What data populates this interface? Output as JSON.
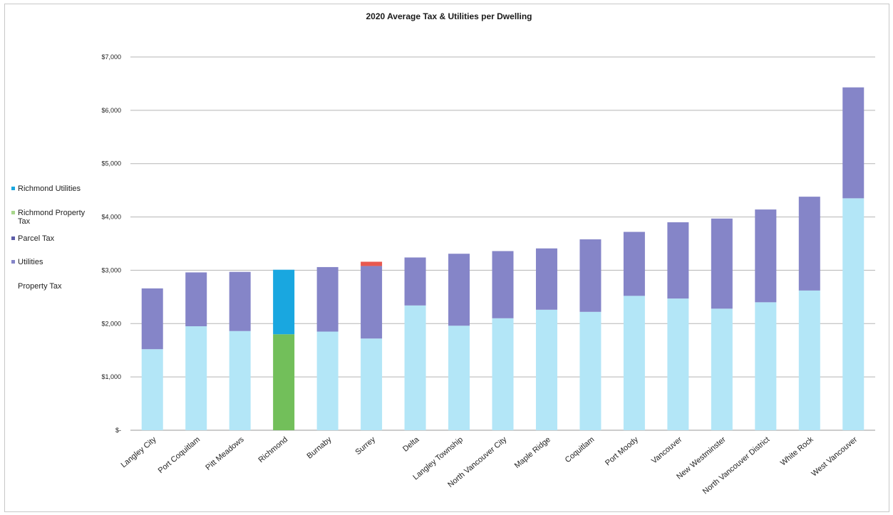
{
  "chart_data": {
    "type": "bar",
    "stacked": true,
    "title": "2020 Average Tax & Utilities per Dwelling",
    "xlabel": "",
    "ylabel": "",
    "ylim": [
      0,
      7000
    ],
    "yticks": [
      0,
      1000,
      2000,
      3000,
      4000,
      5000,
      6000,
      7000
    ],
    "ytick_labels": [
      "$-",
      "$1,000",
      "$2,000",
      "$3,000",
      "$4,000",
      "$5,000",
      "$6,000",
      "$7,000"
    ],
    "grid": true,
    "legend_position": "left",
    "categories": [
      "Langley City",
      "Port Coquitlam",
      "Pitt Meadows",
      "Richmond",
      "Burnaby",
      "Surrey",
      "Delta",
      "Langley Township",
      "North Vancouver City",
      "Maple Ridge",
      "Coquitlam",
      "Port Moody",
      "Vancouver",
      "New Westminster",
      "North Vancouver District",
      "White Rock",
      "West Vancouver"
    ],
    "series": [
      {
        "name": "Property Tax",
        "color": "#b3e6f7",
        "values": [
          1520,
          1950,
          1860,
          0,
          1850,
          1720,
          2340,
          1960,
          2100,
          2260,
          2220,
          2520,
          2470,
          2280,
          2400,
          2620,
          4350
        ]
      },
      {
        "name": "Utilities",
        "color": "#8585c8",
        "values": [
          1140,
          1010,
          1110,
          0,
          1210,
          1360,
          900,
          1350,
          1260,
          1150,
          1360,
          1200,
          1430,
          1690,
          1740,
          1760,
          2080
        ]
      },
      {
        "name": "Parcel Tax",
        "color": "#5c5ca8",
        "values": [
          0,
          0,
          0,
          0,
          0,
          0,
          0,
          0,
          0,
          0,
          0,
          0,
          0,
          0,
          0,
          0,
          0
        ]
      },
      {
        "name": "Richmond Property Tax",
        "color": "#72bf5a",
        "values": [
          0,
          0,
          0,
          1800,
          0,
          0,
          0,
          0,
          0,
          0,
          0,
          0,
          0,
          0,
          0,
          0,
          0
        ]
      },
      {
        "name": "Richmond Utilities",
        "color": "#19a7e0",
        "values": [
          0,
          0,
          0,
          1210,
          0,
          0,
          0,
          0,
          0,
          0,
          0,
          0,
          0,
          0,
          0,
          0,
          0
        ]
      },
      {
        "name": "",
        "color": "#e8584f",
        "values": [
          0,
          0,
          0,
          0,
          0,
          80,
          0,
          0,
          0,
          0,
          0,
          0,
          0,
          0,
          0,
          0,
          0
        ]
      }
    ],
    "legend": [
      {
        "label": "Richmond Utilities",
        "color": "#19a7e0"
      },
      {
        "label": "Richmond Property Tax",
        "color": "#a8d68c"
      },
      {
        "label": "Parcel Tax",
        "color": "#5c5ca8"
      },
      {
        "label": "Utilities",
        "color": "#8585c8"
      },
      {
        "label": "Property Tax",
        "color": "#ffffff"
      }
    ]
  }
}
